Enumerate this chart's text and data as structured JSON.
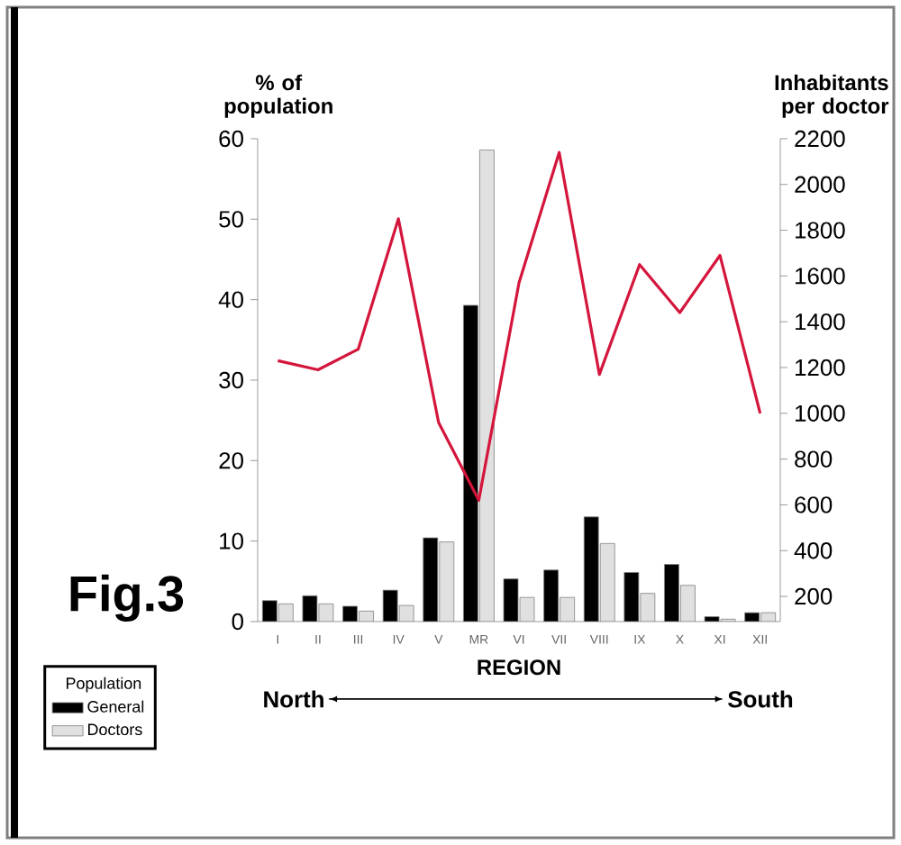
{
  "chart_data": {
    "type": "bar",
    "xlabel": "REGION",
    "ylabel": "% of population",
    "y2label": "Inhabitants per doctor",
    "legend_title": "Population",
    "categories": [
      "I",
      "II",
      "III",
      "IV",
      "V",
      "MR",
      "VI",
      "VII",
      "VIII",
      "IX",
      "X",
      "XI",
      "XII"
    ],
    "series": [
      {
        "name": "General",
        "color": "#000000",
        "values": [
          2.6,
          3.2,
          1.9,
          3.9,
          10.4,
          39.3,
          5.3,
          6.4,
          13.0,
          6.1,
          7.1,
          0.6,
          1.1
        ]
      },
      {
        "name": "Doctors",
        "color": "#e0e0e0",
        "values": [
          2.2,
          2.2,
          1.3,
          2.0,
          9.9,
          58.6,
          3.0,
          3.0,
          9.7,
          3.5,
          4.5,
          0.3,
          1.1
        ]
      },
      {
        "type": "line",
        "axis": "y2",
        "color": "#d4163c",
        "values": [
          1230,
          1190,
          1280,
          1850,
          960,
          620,
          1570,
          2140,
          1170,
          1650,
          1440,
          1690,
          1000
        ]
      }
    ],
    "ylim": [
      0,
      60
    ],
    "yticks": [
      0,
      10,
      20,
      30,
      40,
      50,
      60
    ],
    "y2lim": [
      90,
      2200
    ],
    "y2ticks": [
      200,
      400,
      600,
      800,
      1000,
      1200,
      1400,
      1600,
      1800,
      2000,
      2200
    ],
    "legend": "bottom left",
    "grid": false,
    "marker": "none",
    "line_style": "solid",
    "annotations": [
      "Fig.3",
      "North",
      "South"
    ]
  }
}
